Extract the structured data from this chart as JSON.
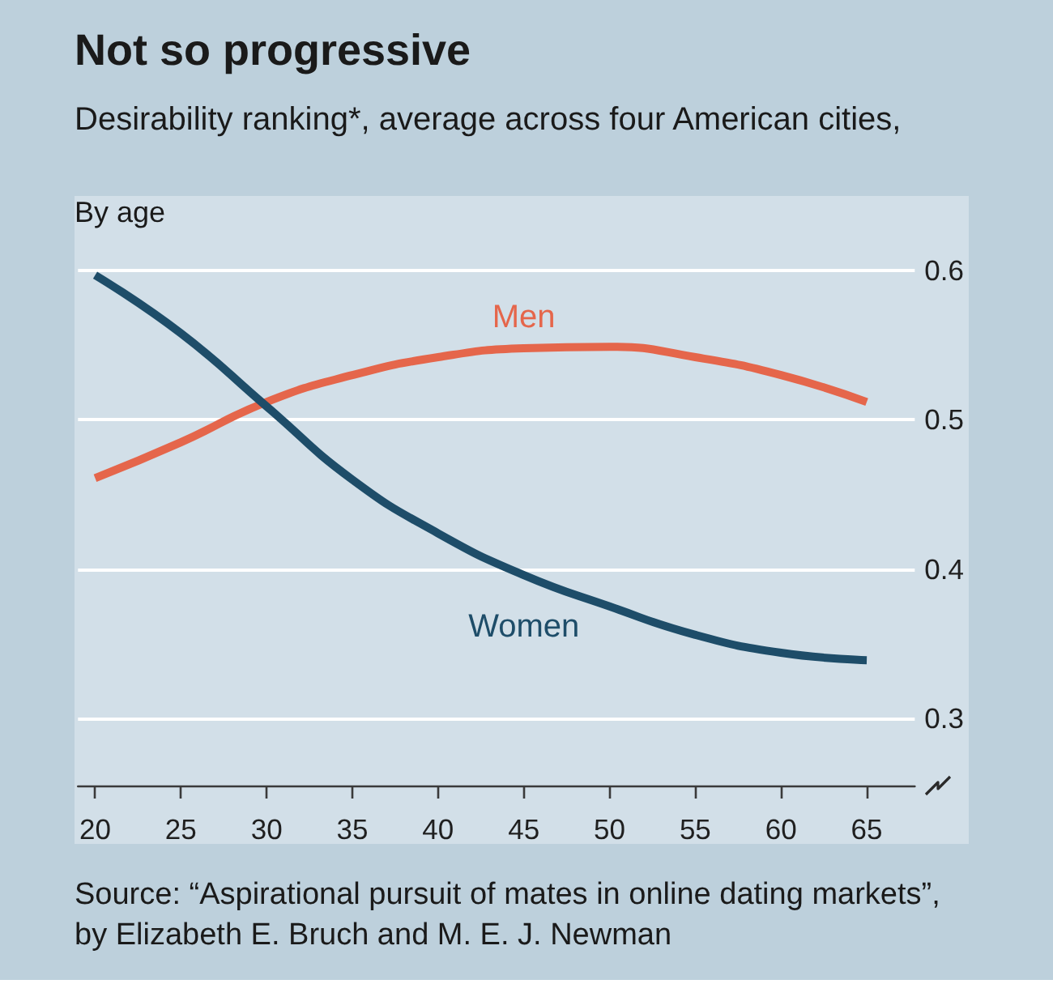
{
  "chart_data": {
    "type": "line",
    "title": "Not so progressive",
    "subtitle": "Desirability ranking*, average across four American cities,",
    "annotations": [
      "By age",
      "Source: “Aspirational pursuit of mates in online dating markets”, by Elizabeth E. Bruch and M. E. J. Newman"
    ],
    "x": [
      20,
      25,
      30,
      35,
      40,
      45,
      50,
      55,
      60,
      65
    ],
    "series": [
      {
        "name": "Men",
        "color": "#e5664b",
        "values": [
          0.461,
          0.485,
          0.512,
          0.53,
          0.542,
          0.548,
          0.549,
          0.542,
          0.53,
          0.512
        ]
      },
      {
        "name": "Women",
        "color": "#1e4d69",
        "values": [
          0.597,
          0.558,
          0.509,
          0.46,
          0.424,
          0.396,
          0.375,
          0.356,
          0.344,
          0.339
        ]
      }
    ],
    "xlim": [
      19,
      67.8
    ],
    "xticks": [
      20,
      25,
      30,
      35,
      40,
      45,
      50,
      55,
      60,
      65
    ],
    "ylim": [
      0.255,
      0.65
    ],
    "yticks": [
      0.3,
      0.4,
      0.5,
      0.6
    ],
    "grid": "y",
    "marker": "none",
    "line_style": "solid"
  }
}
